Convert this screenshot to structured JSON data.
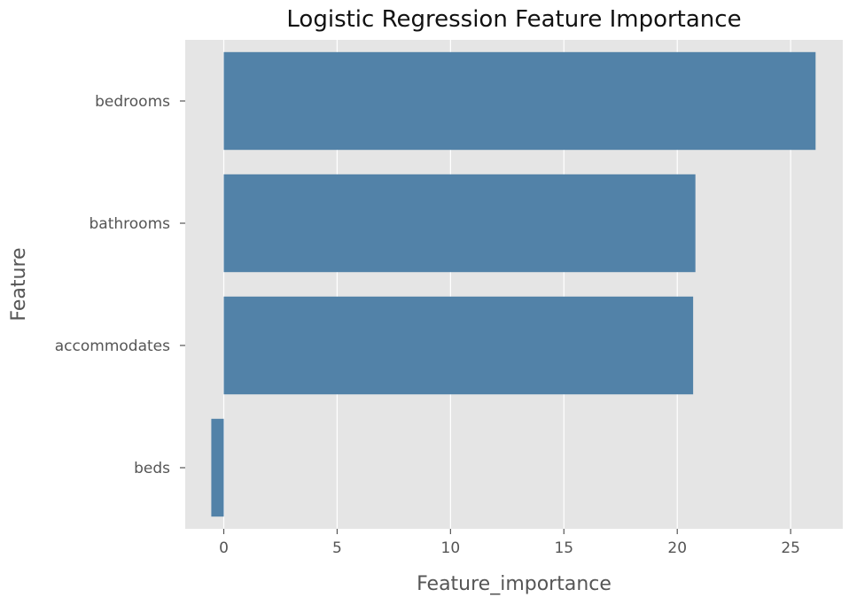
{
  "chart_data": {
    "type": "bar",
    "orientation": "horizontal",
    "title": "Logistic Regression Feature Importance",
    "xlabel": "Feature_importance",
    "ylabel": "Feature",
    "categories": [
      "bedrooms",
      "bathrooms",
      "accommodates",
      "beds"
    ],
    "values": [
      26.1,
      20.8,
      20.7,
      -0.55
    ],
    "xlim": [
      -1.7,
      27.3
    ],
    "xticks": [
      0,
      5,
      10,
      15,
      20,
      25
    ],
    "grid": true,
    "legend": "none",
    "colors": {
      "bar": "#5282a8",
      "plot_background": "#e5e5e5",
      "grid": "#ffffff",
      "text": "#555555",
      "title": "#111111"
    }
  }
}
